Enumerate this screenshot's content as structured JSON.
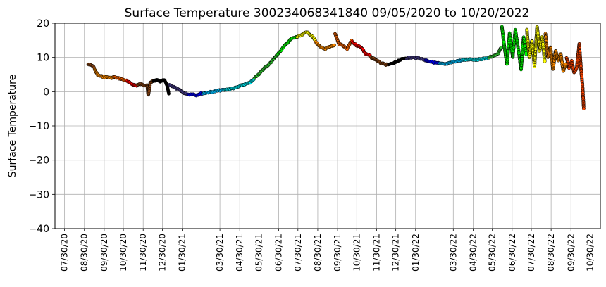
{
  "chart_data": {
    "type": "scatter",
    "title": "Surface Temperature 300234068341840  09/05/2020 to 10/20/2022",
    "xlabel": "",
    "ylabel": "Surface Temperature",
    "x_is_date": true,
    "xlim": [
      "2020-07-15",
      "2022-11-15"
    ],
    "ylim": [
      -40,
      20
    ],
    "y_ticks": [
      -40,
      -30,
      -20,
      -10,
      0,
      10,
      20
    ],
    "x_ticks": [
      "2020-07-30",
      "2020-08-30",
      "2020-09-30",
      "2020-10-30",
      "2020-11-30",
      "2020-12-30",
      "2021-01-30",
      "2021-03-30",
      "2021-04-30",
      "2021-05-30",
      "2021-06-30",
      "2021-07-30",
      "2021-08-30",
      "2021-09-30",
      "2021-10-30",
      "2021-11-30",
      "2021-12-30",
      "2022-01-30",
      "2022-03-30",
      "2022-04-30",
      "2022-05-30",
      "2022-06-30",
      "2022-07-30",
      "2022-08-30",
      "2022-09-30",
      "2022-10-30"
    ],
    "x_tick_labels": [
      "07/30/20",
      "08/30/20",
      "09/30/20",
      "10/30/20",
      "11/30/20",
      "12/30/20",
      "01/30/21",
      "03/30/21",
      "04/30/21",
      "05/30/21",
      "06/30/21",
      "07/30/21",
      "08/30/21",
      "09/30/21",
      "10/30/21",
      "11/30/21",
      "12/30/21",
      "01/30/22",
      "03/30/22",
      "04/30/22",
      "05/30/22",
      "06/30/22",
      "07/30/22",
      "08/30/22",
      "09/30/22",
      "10/30/22"
    ],
    "grid": true,
    "marker_edge_color": "#000000",
    "series": [
      {
        "color": "#8b4513",
        "x": [
          "2020-09-05",
          "2020-09-08",
          "2020-09-11",
          "2020-09-14"
        ],
        "y": [
          8.0,
          7.8,
          7.6,
          7.2
        ]
      },
      {
        "color": "#ff8c00",
        "x": [
          "2020-09-15",
          "2020-09-20",
          "2020-09-25",
          "2020-10-01",
          "2020-10-06",
          "2020-10-10",
          "2020-10-14"
        ],
        "y": [
          6.5,
          4.8,
          4.5,
          4.3,
          4.2,
          4.0,
          4.2
        ]
      },
      {
        "color": "#ff6600",
        "x": [
          "2020-10-15",
          "2020-10-20",
          "2020-10-26",
          "2020-10-31",
          "2020-11-04"
        ],
        "y": [
          4.3,
          4.0,
          3.8,
          3.4,
          3.2
        ]
      },
      {
        "color": "#ff0000",
        "x": [
          "2020-11-05",
          "2020-11-10",
          "2020-11-15",
          "2020-11-20"
        ],
        "y": [
          3.0,
          2.5,
          2.0,
          1.8
        ]
      },
      {
        "color": "#8b4513",
        "x": [
          "2020-11-21",
          "2020-11-26",
          "2020-12-01",
          "2020-12-06",
          "2020-12-08",
          "2020-12-11",
          "2020-12-15"
        ],
        "y": [
          2.0,
          2.2,
          1.9,
          2.0,
          -1.0,
          2.5,
          3.2
        ]
      },
      {
        "color": "#000000",
        "x": [
          "2020-12-16",
          "2020-12-22",
          "2020-12-27",
          "2021-01-02",
          "2021-01-06",
          "2021-01-09"
        ],
        "y": [
          3.2,
          3.3,
          3.0,
          3.4,
          2.0,
          -0.5
        ]
      },
      {
        "color": "#483d8b",
        "x": [
          "2021-01-10",
          "2021-01-16",
          "2021-01-22",
          "2021-01-28",
          "2021-02-03",
          "2021-02-08"
        ],
        "y": [
          2.0,
          1.5,
          0.8,
          0.2,
          -0.5,
          -0.8
        ]
      },
      {
        "color": "#0000ff",
        "x": [
          "2021-02-09",
          "2021-02-15",
          "2021-02-21",
          "2021-02-27",
          "2021-03-03"
        ],
        "y": [
          -0.8,
          -0.7,
          -1.0,
          -0.6,
          -0.5
        ]
      },
      {
        "color": "#00bfff",
        "x": [
          "2021-03-04",
          "2021-03-12",
          "2021-03-20",
          "2021-03-28",
          "2021-04-05"
        ],
        "y": [
          -0.5,
          -0.2,
          0.0,
          0.3,
          0.5
        ]
      },
      {
        "color": "#00e5ee",
        "x": [
          "2021-04-06",
          "2021-04-15",
          "2021-04-25",
          "2021-05-05",
          "2021-05-15",
          "2021-05-22"
        ],
        "y": [
          0.5,
          0.8,
          1.2,
          2.0,
          2.5,
          3.5
        ]
      },
      {
        "color": "#32cd32",
        "x": [
          "2021-05-23",
          "2021-06-01",
          "2021-06-08",
          "2021-06-15",
          "2021-06-22",
          "2021-06-28"
        ],
        "y": [
          4.0,
          5.5,
          7.0,
          8.0,
          9.5,
          11.0
        ]
      },
      {
        "color": "#00ff00",
        "x": [
          "2021-06-29",
          "2021-07-05",
          "2021-07-12",
          "2021-07-20",
          "2021-07-28"
        ],
        "y": [
          11.0,
          12.5,
          14.0,
          15.5,
          16.0
        ]
      },
      {
        "color": "#ffff00",
        "x": [
          "2021-07-29",
          "2021-08-05",
          "2021-08-12",
          "2021-08-20",
          "2021-08-26"
        ],
        "y": [
          16.0,
          16.5,
          17.5,
          16.5,
          15.0
        ]
      },
      {
        "color": "#ff8c00",
        "x": [
          "2021-08-27",
          "2021-09-03",
          "2021-09-10",
          "2021-09-17",
          "2021-09-25"
        ],
        "y": [
          14.5,
          13.0,
          12.5,
          13.0,
          13.5
        ]
      },
      {
        "color": "#ff6600",
        "x": [
          "2021-09-26",
          "2021-10-02",
          "2021-10-08",
          "2021-10-15",
          "2021-10-22"
        ],
        "y": [
          17.0,
          14.0,
          13.5,
          12.5,
          15.0
        ]
      },
      {
        "color": "#ff0000",
        "x": [
          "2021-10-23",
          "2021-10-30",
          "2021-11-06",
          "2021-11-13",
          "2021-11-20"
        ],
        "y": [
          14.5,
          13.5,
          13.0,
          11.0,
          10.5
        ]
      },
      {
        "color": "#8b4513",
        "x": [
          "2021-11-21",
          "2021-11-28",
          "2021-12-05",
          "2021-12-12",
          "2021-12-18"
        ],
        "y": [
          10.0,
          9.5,
          8.5,
          8.0,
          7.8
        ]
      },
      {
        "color": "#000000",
        "x": [
          "2021-12-19",
          "2021-12-26",
          "2022-01-02",
          "2022-01-09",
          "2022-01-15"
        ],
        "y": [
          8.0,
          8.2,
          9.0,
          9.5,
          9.8
        ]
      },
      {
        "color": "#483d8b",
        "x": [
          "2022-01-16",
          "2022-01-26",
          "2022-02-05",
          "2022-02-14"
        ],
        "y": [
          9.8,
          10.0,
          9.8,
          9.2
        ]
      },
      {
        "color": "#0000ff",
        "x": [
          "2022-02-15",
          "2022-02-22",
          "2022-03-01",
          "2022-03-08"
        ],
        "y": [
          9.2,
          8.8,
          8.5,
          8.3
        ]
      },
      {
        "color": "#00bfff",
        "x": [
          "2022-03-09",
          "2022-03-18",
          "2022-03-27",
          "2022-04-05",
          "2022-04-14"
        ],
        "y": [
          8.2,
          8.0,
          8.5,
          9.0,
          9.2
        ]
      },
      {
        "color": "#00e5ee",
        "x": [
          "2022-04-15",
          "2022-04-25",
          "2022-05-05",
          "2022-05-15",
          "2022-05-24"
        ],
        "y": [
          9.2,
          9.5,
          9.3,
          9.6,
          9.8
        ]
      },
      {
        "color": "#32cd32",
        "x": [
          "2022-05-25",
          "2022-06-01",
          "2022-06-08",
          "2022-06-13"
        ],
        "y": [
          10.0,
          10.5,
          11.0,
          13.0
        ]
      },
      {
        "color": "#00ff00",
        "x": [
          "2022-06-14",
          "2022-06-18",
          "2022-06-22",
          "2022-06-26",
          "2022-07-01",
          "2022-07-05",
          "2022-07-10",
          "2022-07-14",
          "2022-07-18",
          "2022-07-22"
        ],
        "y": [
          19.0,
          13.0,
          8.0,
          17.0,
          10.0,
          18.0,
          12.0,
          6.5,
          16.0,
          11.0
        ]
      },
      {
        "color": "#ffff00",
        "x": [
          "2022-07-23",
          "2022-07-27",
          "2022-07-31",
          "2022-08-04",
          "2022-08-08",
          "2022-08-12",
          "2022-08-16",
          "2022-08-20"
        ],
        "y": [
          18.0,
          10.0,
          15.0,
          7.5,
          19.0,
          12.0,
          16.0,
          9.0
        ]
      },
      {
        "color": "#ff8c00",
        "x": [
          "2022-08-21",
          "2022-08-25",
          "2022-08-29",
          "2022-09-02",
          "2022-09-06",
          "2022-09-10",
          "2022-09-14",
          "2022-09-18",
          "2022-09-22"
        ],
        "y": [
          17.0,
          10.0,
          13.0,
          6.5,
          12.0,
          9.0,
          11.0,
          6.0,
          8.0
        ]
      },
      {
        "color": "#ff4500",
        "x": [
          "2022-09-23",
          "2022-09-27",
          "2022-10-01",
          "2022-10-05",
          "2022-10-09",
          "2022-10-13",
          "2022-10-16",
          "2022-10-18",
          "2022-10-20"
        ],
        "y": [
          10.0,
          7.0,
          9.0,
          5.5,
          7.0,
          14.0,
          6.0,
          2.0,
          -5.0
        ]
      }
    ]
  }
}
